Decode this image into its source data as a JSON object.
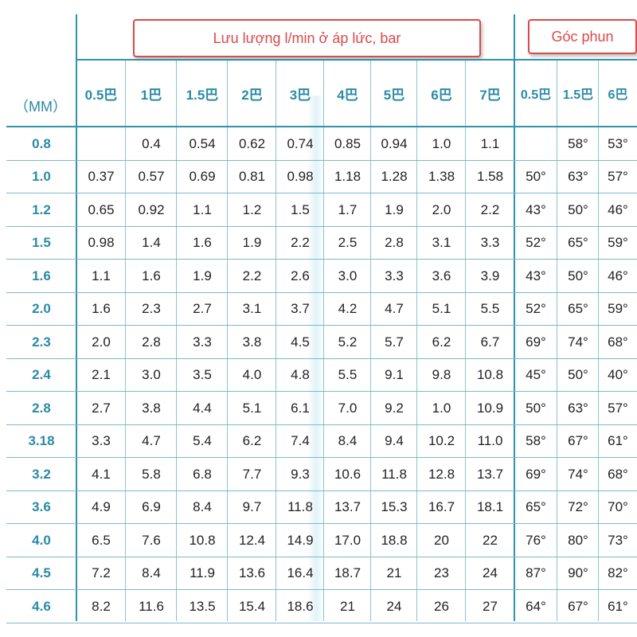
{
  "headers": {
    "flow_title": "Lưu lượng l/min ở áp lức, bar",
    "angle_title": "Góc phun",
    "diameter_label": "（MM）",
    "pressures": [
      "0.5巴",
      "1巴",
      "1.5巴",
      "2巴",
      "3巴",
      "4巴",
      "5巴",
      "6巴",
      "7巴"
    ],
    "angle_pressures": [
      "0.5巴",
      "1.5巴",
      "6巴"
    ]
  },
  "rows": [
    {
      "mm": "0.8",
      "flows": [
        "",
        "0.4",
        "0.54",
        "0.62",
        "0.74",
        "0.85",
        "0.94",
        "1.0",
        "1.1"
      ],
      "angles": [
        "",
        "58°",
        "53°"
      ]
    },
    {
      "mm": "1.0",
      "flows": [
        "0.37",
        "0.57",
        "0.69",
        "0.81",
        "0.98",
        "1.18",
        "1.28",
        "1.38",
        "1.58"
      ],
      "angles": [
        "50°",
        "63°",
        "57°"
      ]
    },
    {
      "mm": "1.2",
      "flows": [
        "0.65",
        "0.92",
        "1.1",
        "1.2",
        "1.5",
        "1.7",
        "1.9",
        "2.0",
        "2.2"
      ],
      "angles": [
        "43°",
        "50°",
        "46°"
      ]
    },
    {
      "mm": "1.5",
      "flows": [
        "0.98",
        "1.4",
        "1.6",
        "1.9",
        "2.2",
        "2.5",
        "2.8",
        "3.1",
        "3.3"
      ],
      "angles": [
        "52°",
        "65°",
        "59°"
      ]
    },
    {
      "mm": "1.6",
      "flows": [
        "1.1",
        "1.6",
        "1.9",
        "2.2",
        "2.6",
        "3.0",
        "3.3",
        "3.6",
        "3.9"
      ],
      "angles": [
        "43°",
        "50°",
        "46°"
      ]
    },
    {
      "mm": "2.0",
      "flows": [
        "1.6",
        "2.3",
        "2.7",
        "3.1",
        "3.7",
        "4.2",
        "4.7",
        "5.1",
        "5.5"
      ],
      "angles": [
        "52°",
        "65°",
        "59°"
      ]
    },
    {
      "mm": "2.3",
      "flows": [
        "2.0",
        "2.8",
        "3.3",
        "3.8",
        "4.5",
        "5.2",
        "5.7",
        "6.2",
        "6.7"
      ],
      "angles": [
        "69°",
        "74°",
        "68°"
      ]
    },
    {
      "mm": "2.4",
      "flows": [
        "2.1",
        "3.0",
        "3.5",
        "4.0",
        "4.8",
        "5.5",
        "9.1",
        "9.8",
        "10.8"
      ],
      "angles": [
        "45°",
        "50°",
        "40°"
      ]
    },
    {
      "mm": "2.8",
      "flows": [
        "2.7",
        "3.8",
        "4.4",
        "5.1",
        "6.1",
        "7.0",
        "9.2",
        "1.0",
        "10.9"
      ],
      "angles": [
        "50°",
        "63°",
        "57°"
      ]
    },
    {
      "mm": "3.18",
      "flows": [
        "3.3",
        "4.7",
        "5.4",
        "6.2",
        "7.4",
        "8.4",
        "9.4",
        "10.2",
        "11.0"
      ],
      "angles": [
        "58°",
        "67°",
        "61°"
      ]
    },
    {
      "mm": "3.2",
      "flows": [
        "4.1",
        "5.8",
        "6.8",
        "7.7",
        "9.3",
        "10.6",
        "11.8",
        "12.8",
        "13.7"
      ],
      "angles": [
        "69°",
        "74°",
        "68°"
      ]
    },
    {
      "mm": "3.6",
      "flows": [
        "4.9",
        "6.9",
        "8.4",
        "9.7",
        "11.8",
        "13.7",
        "15.3",
        "16.7",
        "18.1"
      ],
      "angles": [
        "65°",
        "72°",
        "70°"
      ]
    },
    {
      "mm": "4.0",
      "flows": [
        "6.5",
        "7.6",
        "10.8",
        "12.4",
        "14.9",
        "17.0",
        "18.8",
        "20",
        "22"
      ],
      "angles": [
        "76°",
        "80°",
        "73°"
      ]
    },
    {
      "mm": "4.5",
      "flows": [
        "7.2",
        "8.4",
        "11.9",
        "13.6",
        "16.4",
        "18.7",
        "21",
        "23",
        "24"
      ],
      "angles": [
        "87°",
        "90°",
        "82°"
      ]
    },
    {
      "mm": "4.6",
      "flows": [
        "8.2",
        "11.6",
        "13.5",
        "15.4",
        "18.6",
        "21",
        "24",
        "26",
        "27"
      ],
      "angles": [
        "64°",
        "67°",
        "61°"
      ]
    }
  ],
  "colors": {
    "accent": "#2b8aa6",
    "banner": "#d94a4a"
  }
}
